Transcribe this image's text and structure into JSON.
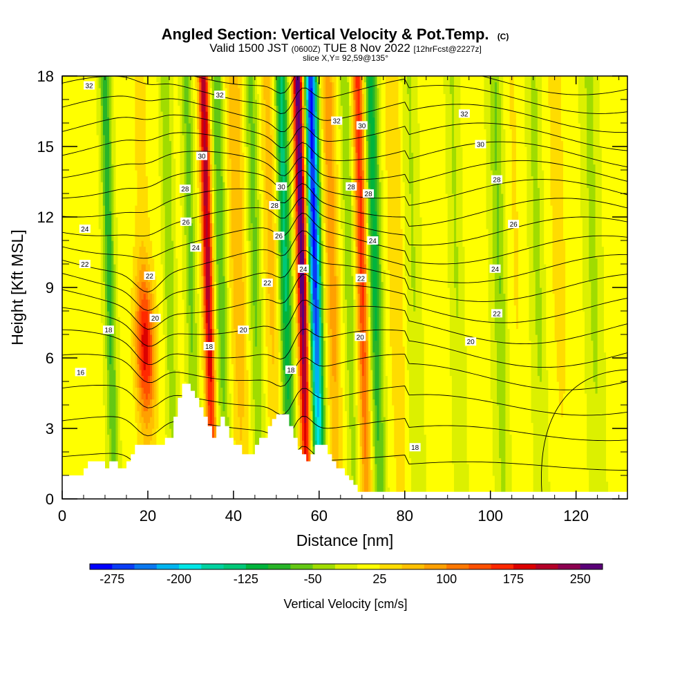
{
  "chart_data": {
    "type": "heatmap",
    "title": {
      "main": "Angled Section: Vertical Velocity & Pot.Temp.",
      "main_tag": "(C)",
      "line2_a": "Valid 1500 JST",
      "line2_b": "(0600Z)",
      "line2_c": "TUE 8 Nov 2022",
      "line2_d": "[12hrFcst@2227z]",
      "line3": "slice X,Y= 92,59@135°"
    },
    "xlabel": "Distance [nm]",
    "ylabel": "Height [Kft MSL]",
    "xlim": [
      0,
      132
    ],
    "ylim": [
      0,
      18
    ],
    "x_ticks": [
      0,
      20,
      40,
      60,
      80,
      100,
      120
    ],
    "y_ticks": [
      0,
      3,
      6,
      9,
      12,
      15,
      18
    ],
    "x_tick_labels": [
      "0",
      "20",
      "40",
      "60",
      "80",
      "100",
      "120"
    ],
    "y_tick_labels": [
      "0",
      "3",
      "6",
      "9",
      "12",
      "15",
      "18"
    ],
    "colorbar": {
      "label": "Vertical Velocity [cm/s]",
      "ticks": [
        "-275",
        "-200",
        "-125",
        "-50",
        "25",
        "100",
        "175",
        "250"
      ],
      "colors": [
        "#0000ff",
        "#0a3cf5",
        "#0a78f0",
        "#00b4f0",
        "#00e6e6",
        "#00d2a0",
        "#00c878",
        "#00b43c",
        "#28b428",
        "#64c814",
        "#a0dc00",
        "#dcf000",
        "#ffff00",
        "#ffdc00",
        "#ffc000",
        "#ffa000",
        "#ff7800",
        "#ff5000",
        "#ff2800",
        "#dc0000",
        "#b40028",
        "#8c0050",
        "#5a0078"
      ]
    },
    "theta_labels": [
      {
        "x": 6.3,
        "y": 17.6,
        "text": "32"
      },
      {
        "x": 36.8,
        "y": 17.2,
        "text": "32"
      },
      {
        "x": 64.1,
        "y": 16.1,
        "text": "32"
      },
      {
        "x": 93.9,
        "y": 16.4,
        "text": "32"
      },
      {
        "x": 32.6,
        "y": 14.6,
        "text": "30"
      },
      {
        "x": 70.0,
        "y": 15.9,
        "text": "30"
      },
      {
        "x": 97.7,
        "y": 15.1,
        "text": "30"
      },
      {
        "x": 51.2,
        "y": 13.3,
        "text": "30"
      },
      {
        "x": 28.7,
        "y": 13.2,
        "text": "28"
      },
      {
        "x": 49.6,
        "y": 12.5,
        "text": "28"
      },
      {
        "x": 67.5,
        "y": 13.3,
        "text": "28"
      },
      {
        "x": 71.5,
        "y": 13.0,
        "text": "28"
      },
      {
        "x": 101.5,
        "y": 13.6,
        "text": "28"
      },
      {
        "x": 28.9,
        "y": 11.8,
        "text": "26"
      },
      {
        "x": 50.6,
        "y": 11.2,
        "text": "26"
      },
      {
        "x": 105.4,
        "y": 11.7,
        "text": "26"
      },
      {
        "x": 5.3,
        "y": 11.5,
        "text": "24"
      },
      {
        "x": 31.2,
        "y": 10.7,
        "text": "24"
      },
      {
        "x": 56.3,
        "y": 9.8,
        "text": "24"
      },
      {
        "x": 72.5,
        "y": 11.0,
        "text": "24"
      },
      {
        "x": 101.1,
        "y": 9.8,
        "text": "24"
      },
      {
        "x": 5.3,
        "y": 10.0,
        "text": "22"
      },
      {
        "x": 20.4,
        "y": 9.5,
        "text": "22"
      },
      {
        "x": 47.9,
        "y": 9.2,
        "text": "22"
      },
      {
        "x": 69.8,
        "y": 9.4,
        "text": "22"
      },
      {
        "x": 101.5,
        "y": 7.9,
        "text": "22"
      },
      {
        "x": 21.7,
        "y": 7.7,
        "text": "20"
      },
      {
        "x": 42.3,
        "y": 7.2,
        "text": "20"
      },
      {
        "x": 69.6,
        "y": 6.9,
        "text": "20"
      },
      {
        "x": 95.4,
        "y": 6.7,
        "text": "20"
      },
      {
        "x": 10.8,
        "y": 7.2,
        "text": "18"
      },
      {
        "x": 34.3,
        "y": 6.5,
        "text": "18"
      },
      {
        "x": 53.4,
        "y": 5.5,
        "text": "18"
      },
      {
        "x": 82.4,
        "y": 2.2,
        "text": "18"
      },
      {
        "x": 4.3,
        "y": 5.4,
        "text": "16"
      }
    ],
    "terrain": [
      [
        0,
        1.0
      ],
      [
        5,
        1.0
      ],
      [
        5,
        1.3
      ],
      [
        6,
        1.3
      ],
      [
        6,
        1.6
      ],
      [
        10,
        1.6
      ],
      [
        10,
        1.3
      ],
      [
        11,
        1.3
      ],
      [
        11,
        1.6
      ],
      [
        13,
        1.6
      ],
      [
        13,
        1.3
      ],
      [
        15,
        1.3
      ],
      [
        15,
        1.6
      ],
      [
        16,
        1.6
      ],
      [
        16,
        1.9
      ],
      [
        17,
        1.9
      ],
      [
        17,
        2.3
      ],
      [
        24,
        2.3
      ],
      [
        24,
        2.6
      ],
      [
        26,
        2.6
      ],
      [
        26,
        3.5
      ],
      [
        27,
        3.5
      ],
      [
        27,
        4.3
      ],
      [
        28,
        4.3
      ],
      [
        28,
        4.9
      ],
      [
        30,
        4.9
      ],
      [
        30,
        4.6
      ],
      [
        31,
        4.6
      ],
      [
        31,
        4.3
      ],
      [
        32,
        4.3
      ],
      [
        32,
        3.9
      ],
      [
        33,
        3.9
      ],
      [
        33,
        3.5
      ],
      [
        34,
        3.5
      ],
      [
        34,
        3.1
      ],
      [
        35,
        3.1
      ],
      [
        35,
        2.6
      ],
      [
        36,
        2.6
      ],
      [
        36,
        3.1
      ],
      [
        37,
        3.1
      ],
      [
        37,
        3.5
      ],
      [
        38,
        3.5
      ],
      [
        38,
        3.1
      ],
      [
        39,
        3.1
      ],
      [
        39,
        2.6
      ],
      [
        40,
        2.6
      ],
      [
        40,
        2.3
      ],
      [
        42,
        2.3
      ],
      [
        42,
        1.9
      ],
      [
        45,
        1.9
      ],
      [
        45,
        2.3
      ],
      [
        46,
        2.3
      ],
      [
        46,
        2.6
      ],
      [
        48,
        2.6
      ],
      [
        48,
        3.1
      ],
      [
        49,
        3.1
      ],
      [
        49,
        3.4
      ],
      [
        50,
        3.4
      ],
      [
        50,
        3.6
      ],
      [
        53,
        3.6
      ],
      [
        53,
        3.1
      ],
      [
        54,
        3.1
      ],
      [
        54,
        2.6
      ],
      [
        55,
        2.6
      ],
      [
        55,
        2.1
      ],
      [
        56,
        2.1
      ],
      [
        56,
        1.9
      ],
      [
        57,
        1.9
      ],
      [
        57,
        1.6
      ],
      [
        58,
        1.6
      ],
      [
        58,
        1.9
      ],
      [
        59,
        1.9
      ],
      [
        59,
        2.3
      ],
      [
        62,
        2.3
      ],
      [
        62,
        1.9
      ],
      [
        63,
        1.9
      ],
      [
        63,
        1.6
      ],
      [
        64,
        1.6
      ],
      [
        64,
        1.3
      ],
      [
        66,
        1.3
      ],
      [
        66,
        1.0
      ],
      [
        67,
        1.0
      ],
      [
        67,
        0.8
      ],
      [
        68,
        0.8
      ],
      [
        68,
        0.6
      ],
      [
        69,
        0.6
      ],
      [
        69,
        0.3
      ],
      [
        132,
        0.3
      ]
    ],
    "grid_on": false,
    "legend": "bottom"
  }
}
